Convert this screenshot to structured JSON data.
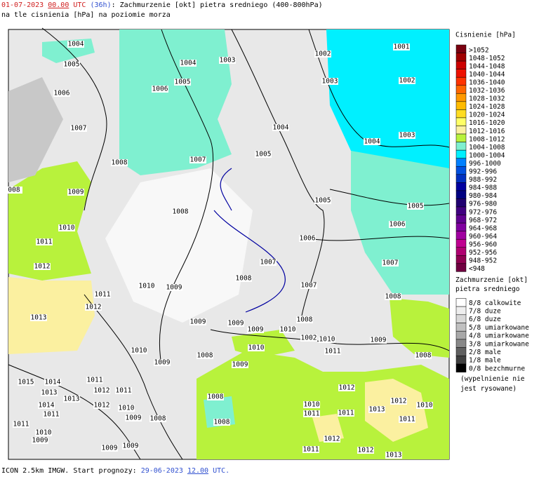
{
  "header": {
    "date": "01-07-2023",
    "time": "00.00",
    "tz": "UTC",
    "lead": "(36h)",
    "title": ": Zachmurzenie [okt] pietra sredniego (400-800hPa)",
    "subtitle": "na tle cisnienia [hPa] na poziomie morza"
  },
  "legend_pressure": {
    "title": "Cisnienie [hPa]",
    "items": [
      {
        "label": ">1052",
        "color": "#7a0010"
      },
      {
        "label": "1048-1052",
        "color": "#a00000"
      },
      {
        "label": "1044-1048",
        "color": "#cc0000"
      },
      {
        "label": "1040-1044",
        "color": "#ee1100"
      },
      {
        "label": "1036-1040",
        "color": "#ff3300"
      },
      {
        "label": "1032-1036",
        "color": "#ff6600"
      },
      {
        "label": "1028-1032",
        "color": "#ff9900"
      },
      {
        "label": "1024-1028",
        "color": "#ffbb00"
      },
      {
        "label": "1020-1024",
        "color": "#ffdd22"
      },
      {
        "label": "1016-1020",
        "color": "#ffff66"
      },
      {
        "label": "1012-1016",
        "color": "#fbf0a0"
      },
      {
        "label": "1008-1012",
        "color": "#b8f23c"
      },
      {
        "label": "1004-1008",
        "color": "#7ff0d0"
      },
      {
        "label": "1000-1004",
        "color": "#00f0ff"
      },
      {
        "label": "996-1000",
        "color": "#0080ff"
      },
      {
        "label": "992-996",
        "color": "#0050e0"
      },
      {
        "label": "988-992",
        "color": "#0030c0"
      },
      {
        "label": "984-988",
        "color": "#0000a0"
      },
      {
        "label": "980-984",
        "color": "#000080"
      },
      {
        "label": "976-980",
        "color": "#200070"
      },
      {
        "label": "972-976",
        "color": "#400080"
      },
      {
        "label": "968-972",
        "color": "#600090"
      },
      {
        "label": "964-968",
        "color": "#8000a0"
      },
      {
        "label": "960-964",
        "color": "#a000a0"
      },
      {
        "label": "956-960",
        "color": "#c00090"
      },
      {
        "label": "952-956",
        "color": "#b00070"
      },
      {
        "label": "948-952",
        "color": "#900050"
      },
      {
        "label": "<948",
        "color": "#700040"
      }
    ]
  },
  "legend_cloud": {
    "title": [
      "Zachmurzenie [okt]",
      "pietra sredniego"
    ],
    "items": [
      {
        "label": "8/8 calkowite",
        "color": "#ffffff"
      },
      {
        "label": "7/8 duze",
        "color": "#eeeeee"
      },
      {
        "label": "6/8 duze",
        "color": "#d8d8d8"
      },
      {
        "label": "5/8 umiarkowane",
        "color": "#c0c0c0"
      },
      {
        "label": "4/8 umiarkowane",
        "color": "#a8a8a8"
      },
      {
        "label": "3/8 umiarkowane",
        "color": "#888888"
      },
      {
        "label": "2/8 male",
        "color": "#606060"
      },
      {
        "label": "1/8 male",
        "color": "#404040"
      },
      {
        "label": "0/8 bezchmurne",
        "color": "#000000"
      }
    ],
    "note": [
      "(wypelnienie nie",
      "jest rysowane)"
    ]
  },
  "map": {
    "isobar_labels": [
      "1004",
      "1005",
      "1006",
      "1007",
      "1008",
      "1009",
      "1010",
      "1011",
      "1012",
      "1013",
      "1004",
      "1005",
      "1006",
      "1003",
      "1002",
      "1003",
      "1001",
      "1002",
      "1003",
      "1004",
      "1004",
      "1005",
      "1007",
      "1008",
      "1005",
      "1005",
      "1006",
      "1006",
      "1007",
      "1008",
      "1007",
      "1007",
      "1008",
      "1010",
      "1009",
      "1011",
      "1012",
      "1009",
      "1009",
      "1009",
      "1008",
      "1010",
      "1002",
      "1010",
      "1011",
      "1009",
      "1008",
      "1010",
      "1009",
      "1008",
      "1010",
      "1009",
      "1008",
      "1008",
      "1012",
      "1012",
      "1010",
      "1010",
      "1011",
      "1013",
      "1011",
      "1011",
      "1012",
      "1011",
      "1012",
      "1013",
      "1015",
      "1014",
      "1013",
      "1013",
      "1014",
      "1011",
      "1011",
      "1010",
      "1009",
      "1012",
      "1011",
      "1011",
      "1012",
      "1010",
      "1009",
      "1008",
      "1009",
      "1009",
      "008"
    ]
  },
  "footer": {
    "source": "ICON 2.5km IMGW. Start prognozy:",
    "date": "29-06-2023",
    "time": "12.00",
    "tz": "UTC."
  }
}
